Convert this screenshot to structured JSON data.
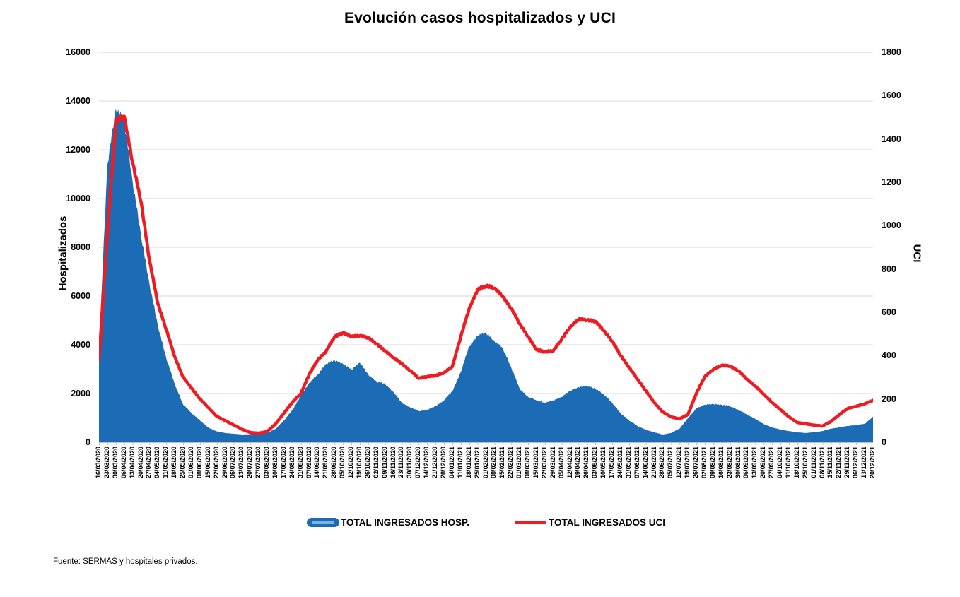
{
  "title": "Evolución casos hospitalizados y UCI",
  "footer": "Fuente: SERMAS y hospitales privados.",
  "colors": {
    "hosp_area": "#1b6cb4",
    "hosp_legend_inner": "#7fb2e0",
    "uci_line": "#ee1b23",
    "gridline": "#d9d9d9",
    "axis_line": "#bfbfbf",
    "text": "#000000"
  },
  "legend": {
    "hosp_label": "TOTAL INGRESADOS HOSP.",
    "uci_label": "TOTAL INGRESADOS UCI"
  },
  "chart_data": {
    "type": "area+line combo (dual axis)",
    "title": "Evolución casos hospitalizados y UCI",
    "grid": true,
    "legend_position": "bottom",
    "left_axis": {
      "label": "Hospitalizados",
      "min": 0,
      "max": 16000,
      "step": 2000,
      "ticks": [
        0,
        2000,
        4000,
        6000,
        8000,
        10000,
        12000,
        14000,
        16000
      ]
    },
    "right_axis": {
      "label": "UCI",
      "min": 0,
      "max": 1800,
      "step": 200,
      "ticks": [
        0,
        200,
        400,
        600,
        800,
        1000,
        1200,
        1400,
        1600,
        1800
      ]
    },
    "x": [
      "16/03/2020",
      "23/03/2020",
      "30/03/2020",
      "06/04/2020",
      "13/04/2020",
      "20/04/2020",
      "27/04/2020",
      "04/05/2020",
      "11/05/2020",
      "18/05/2020",
      "25/05/2020",
      "01/06/2020",
      "08/06/2020",
      "15/06/2020",
      "22/06/2020",
      "29/06/2020",
      "06/07/2020",
      "13/07/2020",
      "20/07/2020",
      "27/07/2020",
      "03/08/2020",
      "10/08/2020",
      "17/08/2020",
      "24/08/2020",
      "31/08/2020",
      "07/09/2020",
      "14/09/2020",
      "21/09/2020",
      "28/09/2020",
      "05/10/2020",
      "12/10/2020",
      "19/10/2020",
      "26/10/2020",
      "02/11/2020",
      "09/11/2020",
      "16/11/2020",
      "23/11/2020",
      "30/11/2020",
      "07/12/2020",
      "14/12/2020",
      "21/12/2020",
      "28/12/2020",
      "04/01/2021",
      "11/01/2021",
      "18/01/2021",
      "25/01/2021",
      "01/02/2021",
      "08/02/2021",
      "15/02/2021",
      "22/02/2021",
      "01/03/2021",
      "08/03/2021",
      "15/03/2021",
      "22/03/2021",
      "29/03/2021",
      "05/04/2021",
      "12/04/2021",
      "19/04/2021",
      "26/04/2021",
      "03/05/2021",
      "10/05/2021",
      "17/05/2021",
      "24/05/2021",
      "31/05/2021",
      "07/06/2021",
      "14/06/2021",
      "21/06/2021",
      "28/06/2021",
      "05/07/2021",
      "12/07/2021",
      "19/07/2021",
      "26/07/2021",
      "02/08/2021",
      "09/08/2021",
      "16/08/2021",
      "23/08/2021",
      "30/08/2021",
      "06/09/2021",
      "13/09/2021",
      "20/09/2021",
      "27/09/2021",
      "04/10/2021",
      "11/10/2021",
      "18/10/2021",
      "25/10/2021",
      "01/11/2021",
      "08/11/2021",
      "15/11/2021",
      "22/11/2021",
      "29/11/2021",
      "06/12/2021",
      "13/12/2021",
      "20/12/2021"
    ],
    "series": [
      {
        "name": "TOTAL INGRESADOS HOSP.",
        "type": "area",
        "axis": "left",
        "color": "#1b6cb4",
        "values": [
          3800,
          11400,
          13700,
          13200,
          10700,
          8500,
          6500,
          4800,
          3450,
          2400,
          1550,
          1200,
          900,
          600,
          450,
          380,
          350,
          320,
          330,
          360,
          380,
          550,
          900,
          1330,
          1910,
          2440,
          2780,
          3220,
          3360,
          3220,
          2990,
          3270,
          2780,
          2490,
          2400,
          2060,
          1620,
          1430,
          1280,
          1330,
          1480,
          1720,
          2100,
          2880,
          3940,
          4380,
          4500,
          4150,
          3860,
          3070,
          2200,
          1860,
          1720,
          1620,
          1720,
          1860,
          2120,
          2260,
          2320,
          2200,
          1960,
          1620,
          1190,
          900,
          670,
          510,
          410,
          320,
          380,
          560,
          990,
          1390,
          1540,
          1570,
          1540,
          1480,
          1330,
          1140,
          960,
          750,
          610,
          520,
          460,
          410,
          380,
          410,
          460,
          560,
          610,
          670,
          705,
          755,
          1050
        ]
      },
      {
        "name": "TOTAL INGRESADOS UCI",
        "type": "line",
        "axis": "right",
        "color": "#ee1b23",
        "values": [
          375,
          965,
          1480,
          1505,
          1290,
          1110,
          840,
          640,
          520,
          395,
          300,
          250,
          200,
          160,
          120,
          100,
          80,
          60,
          45,
          42,
          50,
          85,
          135,
          185,
          225,
          315,
          380,
          420,
          487,
          505,
          487,
          492,
          482,
          454,
          422,
          390,
          362,
          330,
          295,
          303,
          308,
          320,
          350,
          487,
          617,
          704,
          722,
          711,
          672,
          617,
          547,
          487,
          427,
          417,
          422,
          476,
          531,
          568,
          564,
          558,
          515,
          466,
          400,
          346,
          291,
          238,
          183,
          140,
          117,
          108,
          128,
          226,
          303,
          336,
          355,
          352,
          329,
          291,
          259,
          222,
          183,
          150,
          117,
          91,
          85,
          79,
          75,
          96,
          128,
          156,
          166,
          177,
          194
        ]
      }
    ]
  }
}
